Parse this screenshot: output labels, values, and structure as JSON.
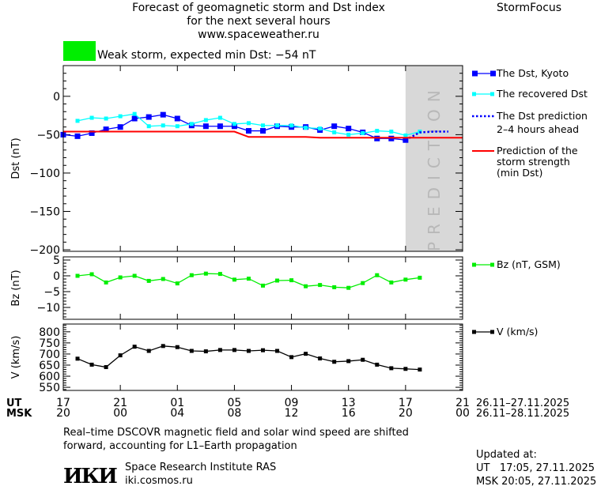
{
  "header": {
    "title_lines": [
      "Forecast of geomagnetic storm and Dst index",
      "for the next several hours",
      "www.spaceweather.ru"
    ],
    "brand": "StormFocus",
    "status_color": "#00ee00",
    "status_text": "Weak storm, expected min Dst: −54 nT"
  },
  "legend": {
    "dst_kyoto": "The Dst, Kyoto",
    "dst_recovered": "The recovered Dst",
    "dst_prediction": [
      "The Dst prediction",
      "2–4 hours ahead"
    ],
    "storm_strength": [
      "Prediction of the",
      "storm strength",
      "(min Dst)"
    ],
    "bz": "Bz (nT, GSM)",
    "v": "V (km/s)"
  },
  "footer": {
    "note_lines": [
      "Real–time DSCOVR magnetic field and solar wind speed are shifted",
      "forward, accounting for L1–Earth propagation"
    ],
    "logo_text": "ИКИ",
    "institute": "Space Research Institute RAS",
    "website": "iki.cosmos.ru",
    "updated_label": "Updated at:",
    "updated_ut": "UT   17:05, 27.11.2025",
    "updated_msk": "MSK 20:05, 27.11.2025"
  },
  "chart_data": {
    "type": "line",
    "x_axis": {
      "unit": "hours",
      "range_ut": [
        "17",
        "21"
      ],
      "ut_label": "UT",
      "msk_label": "MSK",
      "ut_ticks": [
        "17",
        "21",
        "01",
        "05",
        "09",
        "13",
        "17",
        "21"
      ],
      "msk_ticks": [
        "20",
        "00",
        "04",
        "08",
        "12",
        "16",
        "20",
        "00"
      ],
      "ut_dates": "26.11–27.11.2025",
      "msk_dates": "26.11–28.11.2025"
    },
    "prediction_zone": {
      "label": "PREDICTION",
      "from_hour": 24,
      "to_hour": 28,
      "color": "#d8d8d8"
    },
    "panels": [
      {
        "name": "dst",
        "ylabel": "Dst (nT)",
        "ylim": [
          -202,
          40
        ],
        "yticks": [
          0,
          -50,
          -100,
          -150,
          -200
        ],
        "series": [
          {
            "name": "The Dst, Kyoto",
            "color": "#0000ff",
            "start_hour": 0,
            "values": [
              -50,
              -52,
              -48,
              -43,
              -40,
              -29,
              -27,
              -24,
              -29,
              -38,
              -39,
              -39,
              -39,
              -45,
              -45,
              -39,
              -40,
              -40,
              -44,
              -39,
              -42,
              -47,
              -55,
              -55,
              -57
            ]
          },
          {
            "name": "The recovered Dst",
            "color": "#00ffff",
            "start_hour": 1,
            "values": [
              -32,
              -28,
              -29,
              -26,
              -23,
              -39,
              -38,
              -39,
              -36,
              -31,
              -28,
              -36,
              -35,
              -38,
              -38,
              -38,
              -41,
              -42,
              -47,
              -50,
              -48,
              -45,
              -46,
              -51,
              -46
            ]
          },
          {
            "name": "The Dst prediction 2–4 hours ahead",
            "color": "#0000ff",
            "dotted": true,
            "points": [
              [
                24,
                -57
              ],
              [
                24.5,
                -52
              ],
              [
                25,
                -47
              ],
              [
                26,
                -46
              ],
              [
                27,
                -46
              ]
            ]
          },
          {
            "name": "Prediction of the storm strength (min Dst)",
            "color": "#ff0000",
            "step": true,
            "points": [
              [
                0,
                -46
              ],
              [
                12,
                -46
              ],
              [
                13,
                -53
              ],
              [
                17,
                -53
              ],
              [
                18,
                -54
              ],
              [
                28,
                -54
              ]
            ]
          }
        ]
      },
      {
        "name": "bz",
        "ylabel": "Bz (nT)",
        "ylim": [
          -13.75,
          6
        ],
        "yticks": [
          5,
          0,
          -5,
          -10
        ],
        "series": [
          {
            "name": "Bz (nT, GSM)",
            "color": "#00ee00",
            "start_hour": 1,
            "values": [
              0,
              0.5,
              -2.1,
              -0.5,
              0,
              -1.6,
              -1,
              -2.4,
              0.2,
              0.7,
              0.6,
              -1.2,
              -0.9,
              -3.1,
              -1.5,
              -1.4,
              -3.3,
              -2.9,
              -3.6,
              -3.8,
              -2.3,
              0.2,
              -2.1,
              -1.2,
              -0.6
            ]
          }
        ]
      },
      {
        "name": "v",
        "ylabel": "V (km/s)",
        "ylim": [
          536,
          835
        ],
        "yticks": [
          800,
          750,
          700,
          650,
          600,
          550
        ],
        "series": [
          {
            "name": "V (km/s)",
            "color": "#000000",
            "start_hour": 1,
            "values": [
              679,
              652,
              641,
              694,
              733,
              714,
              736,
              731,
              714,
              712,
              718,
              718,
              714,
              717,
              714,
              686,
              701,
              680,
              665,
              668,
              674,
              652,
              636,
              633,
              630
            ]
          }
        ]
      }
    ]
  }
}
